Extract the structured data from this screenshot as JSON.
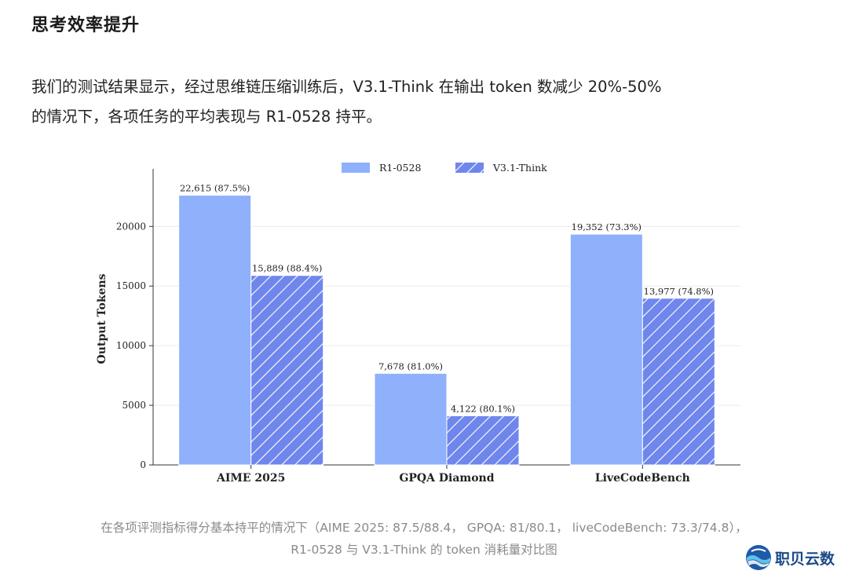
{
  "article": {
    "heading": "思考效率提升",
    "paragraph_line1": "我们的测试结果显示，经过思维链压缩训练后，V3.1-Think 在输出 token 数减少 20%-50%",
    "paragraph_line2": "的情况下，各项任务的平均表现与 R1-0528 持平。",
    "caption_line1": "在各项评测指标得分基本持平的情况下（AIME 2025: 87.5/88.4， GPQA: 81/80.1， liveCodeBench: 73.3/74.8），",
    "caption_line2": "R1-0528 与 V3.1-Think 的 token 消耗量对比图"
  },
  "logo": {
    "text": "职贝云数"
  },
  "colors": {
    "r1": "#8fb0fb",
    "v31": "#6f86ec",
    "hatch": "#ffffff"
  },
  "chart_data": {
    "type": "bar",
    "categories": [
      "AIME 2025",
      "GPQA Diamond",
      "LiveCodeBench"
    ],
    "series": [
      {
        "name": "R1-0528",
        "values": [
          22615,
          7678,
          19352
        ],
        "labels": [
          "22,615 (87.5%)",
          "7,678 (81.0%)",
          "19,352 (73.3%)"
        ]
      },
      {
        "name": "V3.1-Think",
        "values": [
          15889,
          4122,
          13977
        ],
        "labels": [
          "15,889 (88.4%)",
          "4,122 (80.1%)",
          "13,977 (74.8%)"
        ]
      }
    ],
    "ylabel": "Output Tokens",
    "xlabel": "",
    "ylim": [
      0,
      24500
    ],
    "yticks": [
      0,
      5000,
      10000,
      15000,
      20000
    ],
    "grid": true,
    "legend_position": "top-center"
  }
}
